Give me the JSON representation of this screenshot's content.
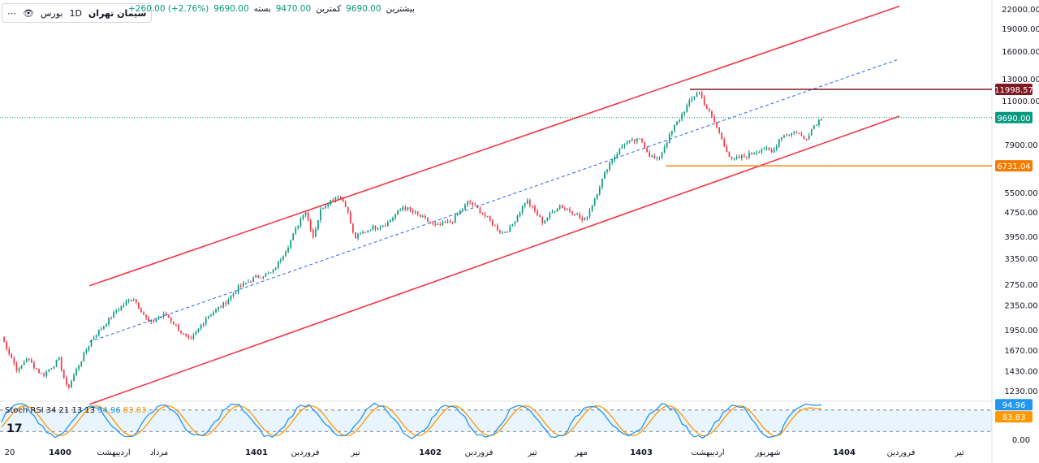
{
  "header": {
    "symbol": "سیمان تهران",
    "interval": "1D",
    "exchange": "بورس",
    "open_label": "بیشترین",
    "open_value": "9690.00",
    "low_label": "کمترین",
    "low_value": "9470.00",
    "close_label": "بسته",
    "close_value": "9690.00",
    "change": "+260.00 (+2.76%)",
    "eye_icon": "eye-icon",
    "more_icon": "more-dots-icon"
  },
  "stoch": {
    "label": "Stoch RSI",
    "params": "34 21 13 13",
    "k_value": "94.96",
    "d_value": "83.83",
    "upper_band": 80,
    "lower_band": 20,
    "zero_label": "0.00"
  },
  "tv_logo": "17",
  "colors": {
    "up": "#089981",
    "down": "#f23645",
    "channel": "#f23645",
    "mid": "#2962ff",
    "resistance": "#801922",
    "support": "#f57c00",
    "k": "#2196f3",
    "d": "#ff9800"
  },
  "chart_data": {
    "type": "candlestick",
    "scale": "log",
    "ylim": [
      1150,
      23000
    ],
    "y_ticks": [
      "22000.00",
      "19000.00",
      "16000.00",
      "13000.00",
      "11000.00",
      "9690.00",
      "7900.00",
      "6731.04",
      "5500.00",
      "4750.00",
      "3950.00",
      "3350.00",
      "2750.00",
      "2350.00",
      "1950.00",
      "1670.00",
      "1430.00",
      "1230.00"
    ],
    "y_tick_values": [
      22000,
      19000,
      16000,
      13000,
      11000,
      7900,
      5500,
      4750,
      3950,
      3350,
      2750,
      2350,
      1950,
      1670,
      1430,
      1230
    ],
    "x_labels": [
      "20",
      "1400",
      "اردیبهشت",
      "مرداد",
      "1401",
      "فروردین",
      "تیر",
      "1402",
      "فروردین",
      "تیر",
      "مهر",
      "1403",
      "اردیبهشت",
      "شهریور",
      "1404",
      "فروردین",
      "تیر"
    ],
    "last_price": {
      "value": 9690,
      "label": "9690.00"
    },
    "resistance": {
      "value": 11998.57,
      "label": "11998.57"
    },
    "support": {
      "value": 6731.04,
      "label": "6731.04"
    },
    "channel": {
      "upper": {
        "from_index": 3,
        "from_price": 2720,
        "to_index": 100,
        "to_price": 22500
      },
      "lower": {
        "from_index": 3,
        "from_price": 1110,
        "to_index": 100,
        "to_price": 9800
      },
      "mid": {
        "from_index": 3,
        "from_price": 1780,
        "to_index": 100,
        "to_price": 15000
      }
    },
    "anchors": [
      {
        "i": 0,
        "p": 1850
      },
      {
        "i": 2,
        "p": 1420
      },
      {
        "i": 3,
        "p": 1580
      },
      {
        "i": 5,
        "p": 1380
      },
      {
        "i": 7,
        "p": 1560
      },
      {
        "i": 8,
        "p": 1240
      },
      {
        "i": 9,
        "p": 1420
      },
      {
        "i": 11,
        "p": 1820
      },
      {
        "i": 14,
        "p": 2250
      },
      {
        "i": 16,
        "p": 2500
      },
      {
        "i": 18,
        "p": 2050
      },
      {
        "i": 20,
        "p": 2200
      },
      {
        "i": 22,
        "p": 1900
      },
      {
        "i": 23,
        "p": 1780
      },
      {
        "i": 25,
        "p": 2150
      },
      {
        "i": 27,
        "p": 2350
      },
      {
        "i": 29,
        "p": 2700
      },
      {
        "i": 31,
        "p": 2900
      },
      {
        "i": 33,
        "p": 3000
      },
      {
        "i": 35,
        "p": 3700
      },
      {
        "i": 37,
        "p": 4850
      },
      {
        "i": 38,
        "p": 3950
      },
      {
        "i": 39,
        "p": 4900
      },
      {
        "i": 41,
        "p": 5400
      },
      {
        "i": 42,
        "p": 5000
      },
      {
        "i": 43,
        "p": 3900
      },
      {
        "i": 45,
        "p": 4200
      },
      {
        "i": 47,
        "p": 4350
      },
      {
        "i": 49,
        "p": 4950
      },
      {
        "i": 51,
        "p": 4600
      },
      {
        "i": 53,
        "p": 4250
      },
      {
        "i": 55,
        "p": 4450
      },
      {
        "i": 57,
        "p": 5150
      },
      {
        "i": 59,
        "p": 4600
      },
      {
        "i": 61,
        "p": 4050
      },
      {
        "i": 62,
        "p": 4200
      },
      {
        "i": 64,
        "p": 5200
      },
      {
        "i": 66,
        "p": 4400
      },
      {
        "i": 68,
        "p": 5000
      },
      {
        "i": 70,
        "p": 4700
      },
      {
        "i": 71,
        "p": 4400
      },
      {
        "i": 72,
        "p": 5000
      },
      {
        "i": 74,
        "p": 6800
      },
      {
        "i": 76,
        "p": 8000
      },
      {
        "i": 78,
        "p": 8200
      },
      {
        "i": 79,
        "p": 7300
      },
      {
        "i": 80,
        "p": 7000
      },
      {
        "i": 82,
        "p": 9000
      },
      {
        "i": 84,
        "p": 11000
      },
      {
        "i": 85,
        "p": 11900
      },
      {
        "i": 86,
        "p": 10400
      },
      {
        "i": 87,
        "p": 9300
      },
      {
        "i": 89,
        "p": 7000
      },
      {
        "i": 91,
        "p": 7300
      },
      {
        "i": 93,
        "p": 7700
      },
      {
        "i": 94,
        "p": 7400
      },
      {
        "i": 95,
        "p": 8400
      },
      {
        "i": 97,
        "p": 8700
      },
      {
        "i": 98,
        "p": 8200
      },
      {
        "i": 99,
        "p": 9100
      },
      {
        "i": 100,
        "p": 9690
      }
    ],
    "stoch_k_last": 94.96,
    "stoch_d_last": 83.83
  }
}
